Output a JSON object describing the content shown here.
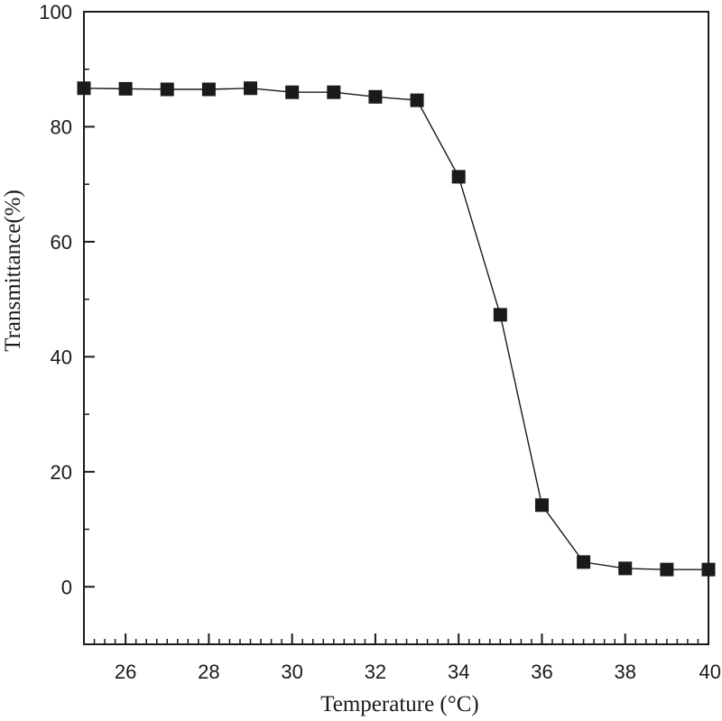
{
  "chart_data": {
    "type": "line",
    "title": "",
    "xlabel": "Temperature (°C)",
    "ylabel": "Transmittance(%)",
    "xlim": [
      25,
      40
    ],
    "ylim": [
      -10,
      100
    ],
    "x_ticks": [
      26,
      28,
      30,
      32,
      34,
      36,
      38,
      40
    ],
    "y_ticks": [
      0,
      20,
      40,
      60,
      80,
      100
    ],
    "grid": false,
    "marker": "square",
    "color": "#1a1a1a",
    "series": [
      {
        "x": [
          25,
          26,
          27,
          28,
          29,
          30,
          31,
          32,
          33,
          34,
          35,
          36,
          37,
          38,
          39,
          40
        ],
        "y": [
          86.7,
          86.6,
          86.5,
          86.5,
          86.7,
          86.0,
          86.0,
          85.2,
          84.6,
          71.3,
          47.3,
          14.2,
          4.3,
          3.2,
          3.0,
          3.0
        ]
      }
    ]
  }
}
